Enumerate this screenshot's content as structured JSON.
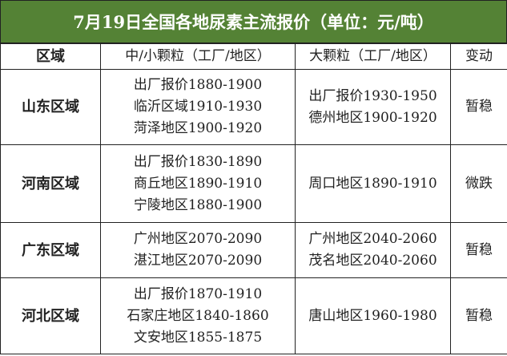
{
  "title": "7月19日全国各地尿素主流报价（单位：元/吨）",
  "header": [
    "区域",
    "中/小颗粒（工厂/地区）",
    "大颗粒（工厂/地区）",
    "变动"
  ],
  "rows": [
    {
      "region": "山东区域",
      "small": [
        "出厂报价1880-1900",
        "临沂区域1910-1930",
        "菏泽地区1900-1920"
      ],
      "large": [
        "出厂报价1930-1950",
        "德州地区1900-1920"
      ],
      "change": "暂稳"
    },
    {
      "region": "河南区域",
      "small": [
        "出厂报价1830-1890",
        "商丘地区1890-1910",
        "宁陵地区1880-1900"
      ],
      "large": [
        "周口地区1890-1910"
      ],
      "change": "微跌"
    },
    {
      "region": "广东区域",
      "small": [
        "广州地区2070-2090",
        "湛江地区2070-2090"
      ],
      "large": [
        "广州地区2040-2060",
        "茂名地区2040-2060"
      ],
      "change": "暂稳"
    },
    {
      "region": "河北区域",
      "small": [
        "出厂报价1870-1910",
        "石家庄地区1840-1860",
        "文安地区1855-1875"
      ],
      "large": [
        "唐山地区1960-1980"
      ],
      "change": "暂稳"
    }
  ],
  "colors": {
    "title_bg": "#548235",
    "title_text": "#ffffff"
  }
}
